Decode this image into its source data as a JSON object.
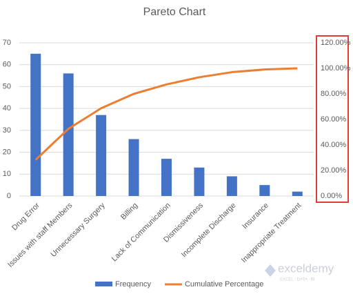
{
  "chart_data": {
    "type": "bar",
    "title": "Pareto Chart",
    "categories": [
      "Drug Error",
      "Issues with staff Members",
      "Unnecessary Surgery",
      "Billing",
      "Lack of Communication",
      "Dismissiveness",
      "Incomplete Discharge",
      "Insurance",
      "Inappropriate Treatment"
    ],
    "series": [
      {
        "name": "Frequency",
        "type": "bar",
        "color": "#4472c4",
        "values": [
          65,
          56,
          37,
          26,
          17,
          13,
          9,
          5,
          2
        ]
      },
      {
        "name": "Cumulative Percentage",
        "type": "line",
        "axis": "y2",
        "color": "#ed7d31",
        "values": [
          28.3,
          52.6,
          68.7,
          80,
          87.4,
          93,
          97,
          99.1,
          100
        ]
      }
    ],
    "ylim": [
      0,
      70
    ],
    "yticks": [
      0,
      10,
      20,
      30,
      40,
      50,
      60,
      70
    ],
    "y2lim": [
      0,
      120
    ],
    "y2ticks": [
      {
        "value": 0,
        "label": "0.00%"
      },
      {
        "value": 20,
        "label": "20.00%"
      },
      {
        "value": 40,
        "label": "40.00%"
      },
      {
        "value": 60,
        "label": "60.00%"
      },
      {
        "value": 80,
        "label": "80.00%"
      },
      {
        "value": 100,
        "label": "100.00%"
      },
      {
        "value": 120,
        "label": "120.00%"
      }
    ],
    "grid": true,
    "legend": "bottom",
    "watermark": {
      "name": "exceldemy",
      "tagline": "EXCEL · DATA · BI"
    }
  }
}
